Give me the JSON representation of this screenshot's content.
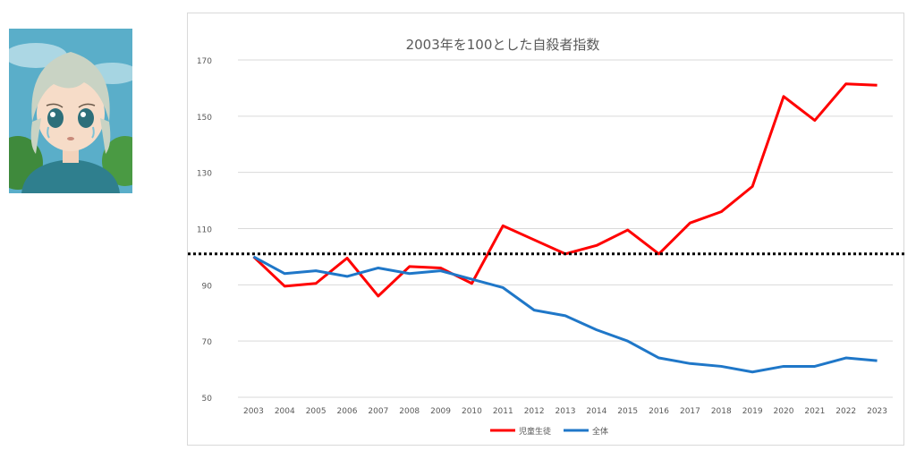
{
  "illustration": {
    "subject": "anime-style girl crying",
    "bg_color": "#5aaec9",
    "shirt_color": "#2f7f8e"
  },
  "chart_data": {
    "type": "line",
    "title": "2003年を100とした自殺者指数",
    "x": [
      "2003",
      "2004",
      "2005",
      "2006",
      "2007",
      "2008",
      "2009",
      "2010",
      "2011",
      "2012",
      "2013",
      "2014",
      "2015",
      "2016",
      "2017",
      "2018",
      "2019",
      "2020",
      "2021",
      "2022",
      "2023"
    ],
    "series": [
      {
        "name": "児童生徒",
        "color": "#ff0000",
        "values": [
          100,
          89.5,
          90.5,
          99.5,
          86,
          96.5,
          96,
          90.5,
          111,
          106,
          101,
          104,
          109.5,
          101,
          112,
          116,
          125,
          157,
          148.5,
          161.5,
          161
        ]
      },
      {
        "name": "全体",
        "color": "#1f77c8",
        "values": [
          100,
          94,
          95,
          93,
          96,
          94,
          95,
          92,
          89,
          81,
          79,
          74,
          70,
          64,
          62,
          61,
          59,
          61,
          61,
          64,
          63
        ]
      }
    ],
    "y_ticks": [
      "50",
      "70",
      "90",
      "110",
      "130",
      "150",
      "170"
    ],
    "ylim": [
      50,
      170
    ],
    "reference_line": {
      "value": 101,
      "style": "dotted",
      "color": "#000000"
    },
    "grid": true,
    "legend": "bottom"
  }
}
